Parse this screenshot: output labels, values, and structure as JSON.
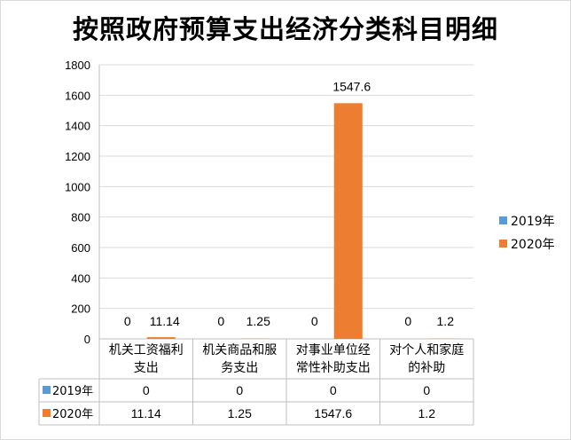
{
  "chart_data": {
    "type": "bar",
    "title": "按照政府预算支出经济分类科目明细",
    "categories": [
      [
        "机关工资福利",
        "支出"
      ],
      [
        "机关商品和服",
        "务支出"
      ],
      [
        "对事业单位经",
        "常性补助支出"
      ],
      [
        "对个人和家庭",
        "的补助"
      ]
    ],
    "series": [
      {
        "name": "2019年",
        "color": "#5b9bd5",
        "values": [
          0,
          0,
          0,
          0
        ],
        "labels": [
          "0",
          "0",
          "0",
          "0"
        ]
      },
      {
        "name": "2020年",
        "color": "#ed7d31",
        "values": [
          11.14,
          1.25,
          1547.6,
          1.2
        ],
        "labels": [
          "11.14",
          "1.25",
          "1547.6",
          "1.2"
        ]
      }
    ],
    "ylim": [
      0,
      1800
    ],
    "yticks": [
      "0",
      "200",
      "400",
      "600",
      "800",
      "1000",
      "1200",
      "1400",
      "1600",
      "1800"
    ],
    "grid": true,
    "legend": "right",
    "data_table": true
  }
}
